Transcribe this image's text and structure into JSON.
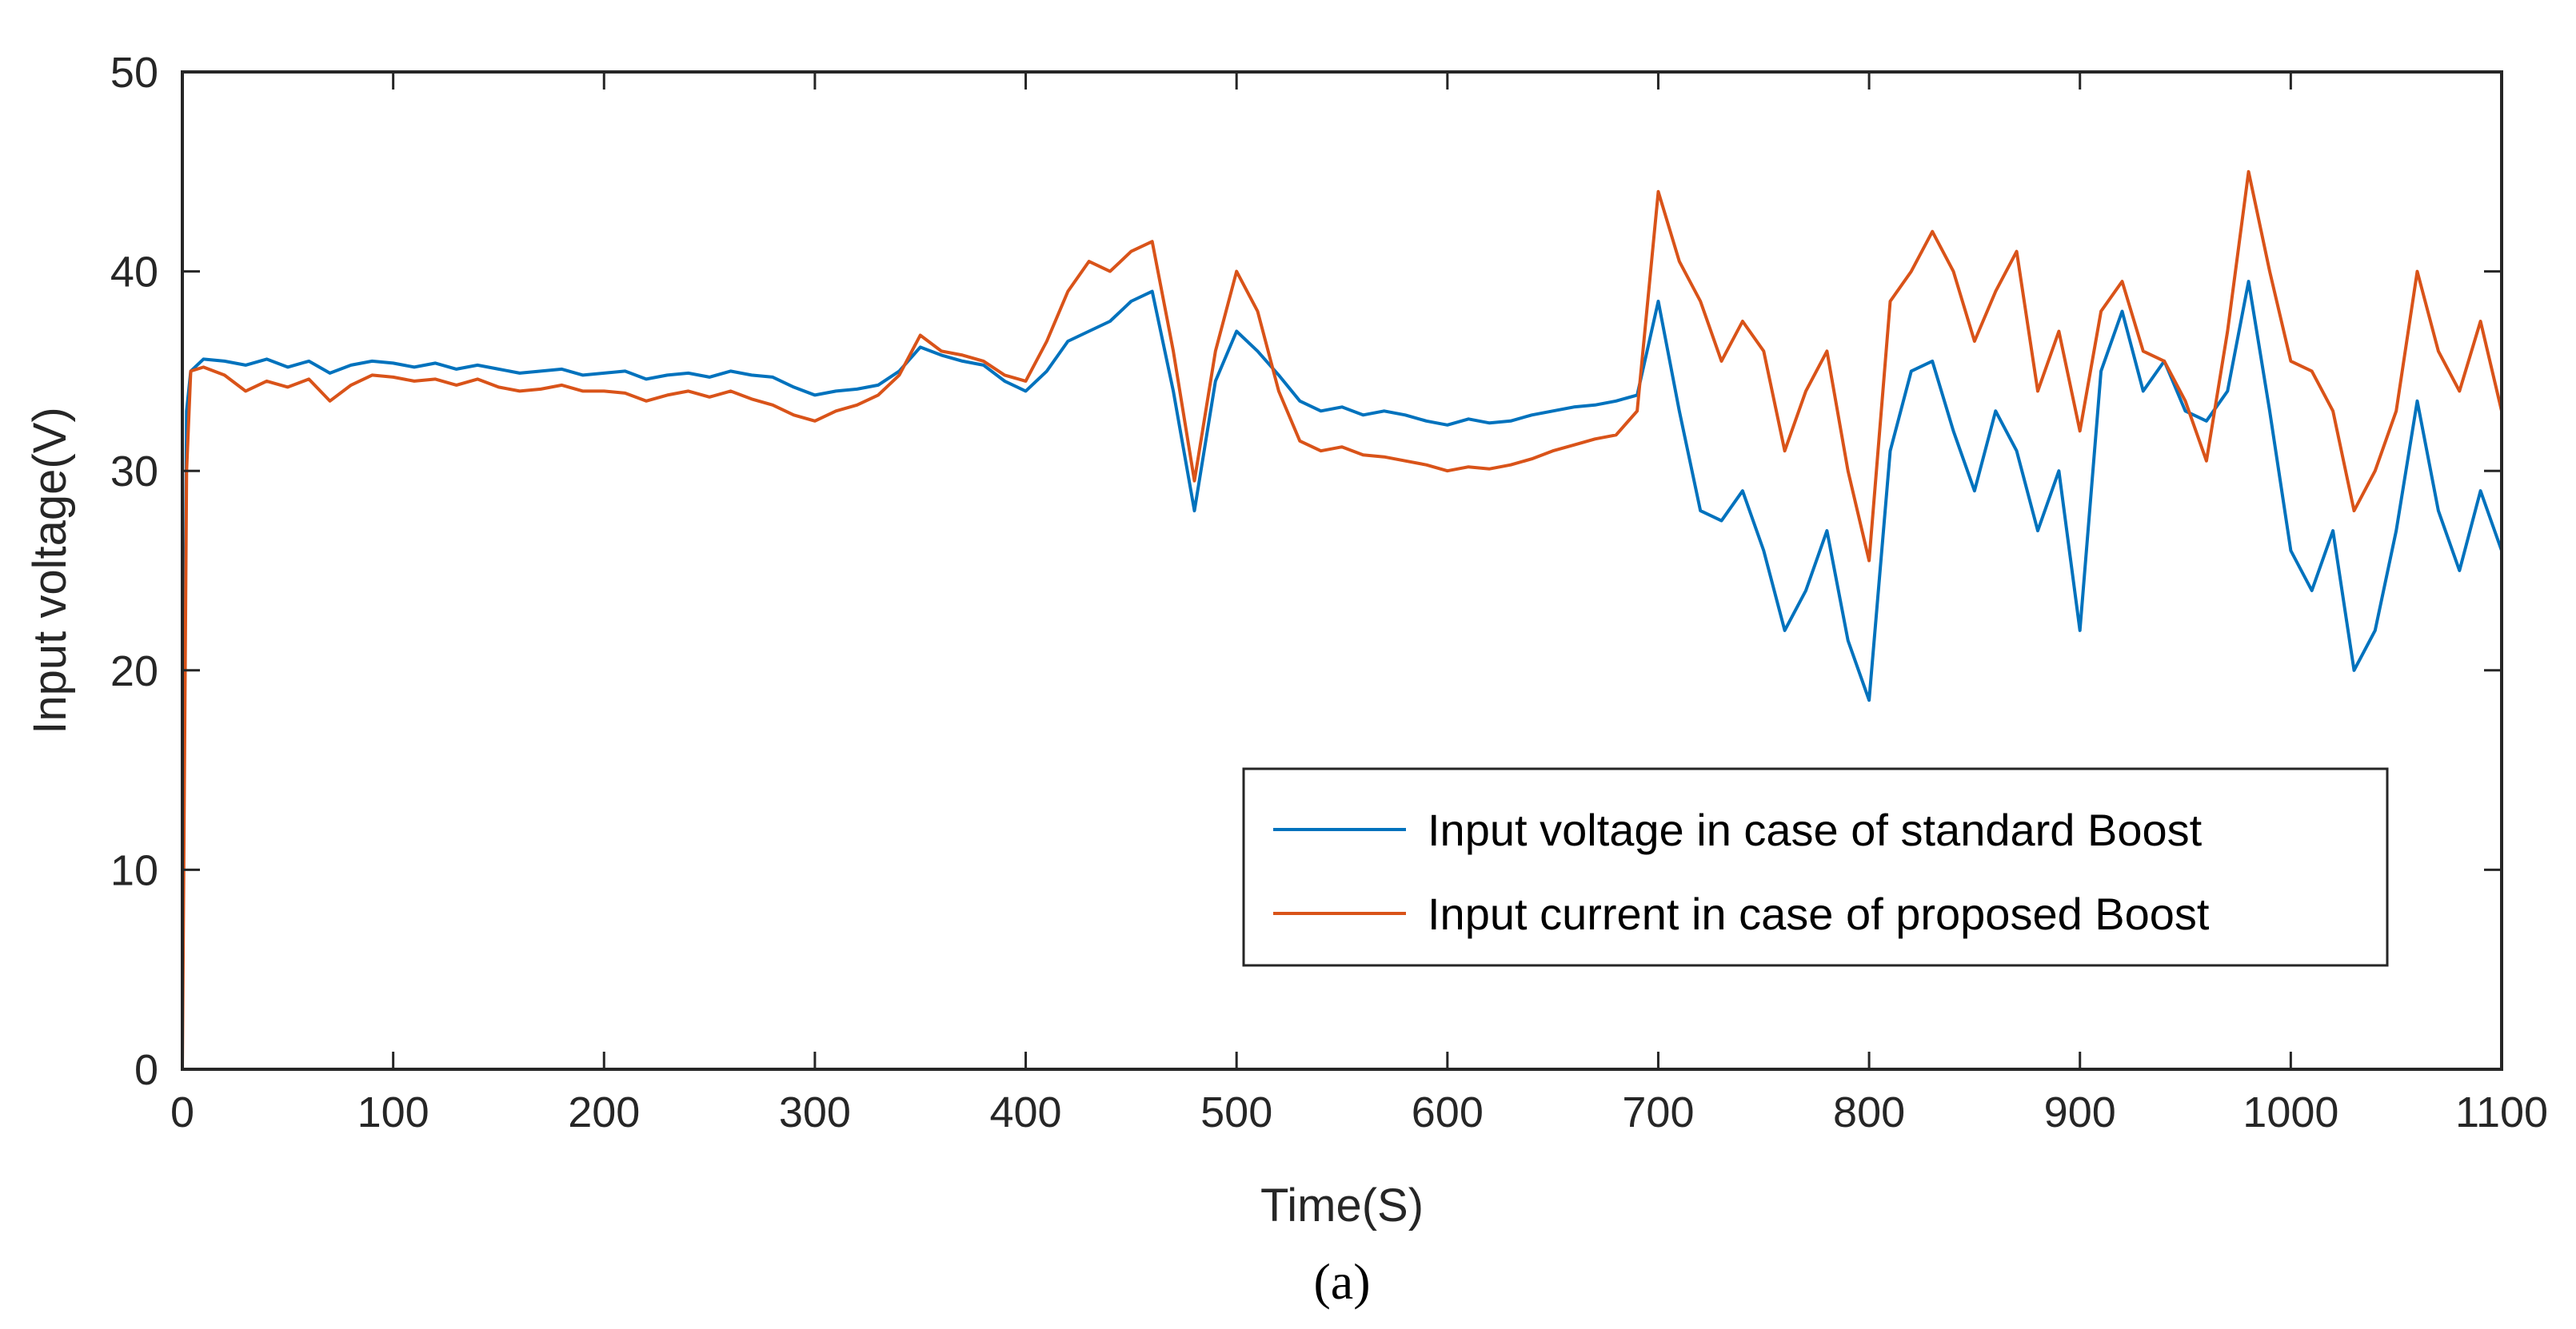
{
  "chart_data": {
    "type": "line",
    "title": "",
    "xlabel": "Time(S)",
    "ylabel": "Input voltage(V)",
    "xlim": [
      0,
      1100
    ],
    "ylim": [
      0,
      50
    ],
    "xticks": [
      0,
      100,
      200,
      300,
      400,
      500,
      600,
      700,
      800,
      900,
      1000,
      1100
    ],
    "yticks": [
      0,
      10,
      20,
      30,
      40,
      50
    ],
    "grid": false,
    "legend_position": "bottom-right",
    "caption": "(a)",
    "series": [
      {
        "name": "Input voltage in case of standard Boost",
        "color": "#0072bd",
        "x": [
          0,
          2,
          4,
          10,
          20,
          30,
          40,
          50,
          60,
          70,
          80,
          90,
          100,
          110,
          120,
          130,
          140,
          150,
          160,
          170,
          180,
          190,
          200,
          210,
          220,
          230,
          240,
          250,
          260,
          270,
          280,
          290,
          300,
          310,
          320,
          330,
          340,
          350,
          360,
          370,
          380,
          390,
          400,
          410,
          420,
          430,
          440,
          450,
          460,
          470,
          480,
          490,
          500,
          510,
          520,
          530,
          540,
          550,
          560,
          570,
          580,
          590,
          600,
          610,
          620,
          630,
          640,
          650,
          660,
          670,
          680,
          690,
          700,
          710,
          720,
          730,
          740,
          750,
          760,
          770,
          780,
          790,
          800,
          810,
          820,
          830,
          840,
          850,
          860,
          870,
          880,
          890,
          900,
          910,
          920,
          930,
          940,
          950,
          960,
          970,
          980,
          990,
          1000,
          1010,
          1020,
          1030,
          1040,
          1050,
          1060,
          1070,
          1080,
          1090,
          1100
        ],
        "values": [
          5,
          33,
          35,
          35.6,
          35.5,
          35.3,
          35.6,
          35.2,
          35.5,
          34.9,
          35.3,
          35.5,
          35.4,
          35.2,
          35.4,
          35.1,
          35.3,
          35.1,
          34.9,
          35.0,
          35.1,
          34.8,
          34.9,
          35.0,
          34.6,
          34.8,
          34.9,
          34.7,
          35.0,
          34.8,
          34.7,
          34.2,
          33.8,
          34.0,
          34.1,
          34.3,
          35.0,
          36.2,
          35.8,
          35.5,
          35.3,
          34.5,
          34.0,
          35.0,
          36.5,
          37.0,
          37.5,
          38.5,
          39.0,
          34.0,
          28.0,
          34.5,
          37.0,
          36.0,
          34.8,
          33.5,
          33.0,
          33.2,
          32.8,
          33.0,
          32.8,
          32.5,
          32.3,
          32.6,
          32.4,
          32.5,
          32.8,
          33.0,
          33.2,
          33.3,
          33.5,
          33.8,
          38.5,
          33.0,
          28.0,
          27.5,
          29.0,
          26.0,
          22.0,
          24.0,
          27.0,
          21.5,
          18.5,
          31.0,
          35.0,
          35.5,
          32.0,
          29.0,
          33.0,
          31.0,
          27.0,
          30.0,
          22.0,
          35.0,
          38.0,
          34.0,
          35.5,
          33.0,
          32.5,
          34.0,
          39.5,
          33.0,
          26.0,
          24.0,
          27.0,
          20.0,
          22.0,
          27.0,
          33.5,
          28.0,
          25.0,
          29.0,
          26.0
        ]
      },
      {
        "name": "Input current in case of proposed Boost",
        "color": "#d95319",
        "x": [
          0,
          2,
          4,
          10,
          20,
          30,
          40,
          50,
          60,
          70,
          80,
          90,
          100,
          110,
          120,
          130,
          140,
          150,
          160,
          170,
          180,
          190,
          200,
          210,
          220,
          230,
          240,
          250,
          260,
          270,
          280,
          290,
          300,
          310,
          320,
          330,
          340,
          350,
          360,
          370,
          380,
          390,
          400,
          410,
          420,
          430,
          440,
          450,
          460,
          470,
          480,
          490,
          500,
          510,
          520,
          530,
          540,
          550,
          560,
          570,
          580,
          590,
          600,
          610,
          620,
          630,
          640,
          650,
          660,
          670,
          680,
          690,
          700,
          710,
          720,
          730,
          740,
          750,
          760,
          770,
          780,
          790,
          800,
          810,
          820,
          830,
          840,
          850,
          860,
          870,
          880,
          890,
          900,
          910,
          920,
          930,
          940,
          950,
          960,
          970,
          980,
          990,
          1000,
          1010,
          1020,
          1030,
          1040,
          1050,
          1060,
          1070,
          1080,
          1090,
          1100
        ],
        "values": [
          0,
          30,
          35,
          35.2,
          34.8,
          34.0,
          34.5,
          34.2,
          34.6,
          33.5,
          34.3,
          34.8,
          34.7,
          34.5,
          34.6,
          34.3,
          34.6,
          34.2,
          34.0,
          34.1,
          34.3,
          34.0,
          34.0,
          33.9,
          33.5,
          33.8,
          34.0,
          33.7,
          34.0,
          33.6,
          33.3,
          32.8,
          32.5,
          33.0,
          33.3,
          33.8,
          34.8,
          36.8,
          36.0,
          35.8,
          35.5,
          34.8,
          34.5,
          36.5,
          39.0,
          40.5,
          40.0,
          41.0,
          41.5,
          36.0,
          29.5,
          36.0,
          40.0,
          38.0,
          34.0,
          31.5,
          31.0,
          31.2,
          30.8,
          30.7,
          30.5,
          30.3,
          30.0,
          30.2,
          30.1,
          30.3,
          30.6,
          31.0,
          31.3,
          31.6,
          31.8,
          33.0,
          44.0,
          40.5,
          38.5,
          35.5,
          37.5,
          36.0,
          31.0,
          34.0,
          36.0,
          30.0,
          25.5,
          38.5,
          40.0,
          42.0,
          40.0,
          36.5,
          39.0,
          41.0,
          34.0,
          37.0,
          32.0,
          38.0,
          39.5,
          36.0,
          35.5,
          33.5,
          30.5,
          37.0,
          45.0,
          40.0,
          35.5,
          35.0,
          33.0,
          28.0,
          30.0,
          33.0,
          40.0,
          36.0,
          34.0,
          37.5,
          33.0
        ]
      }
    ]
  }
}
